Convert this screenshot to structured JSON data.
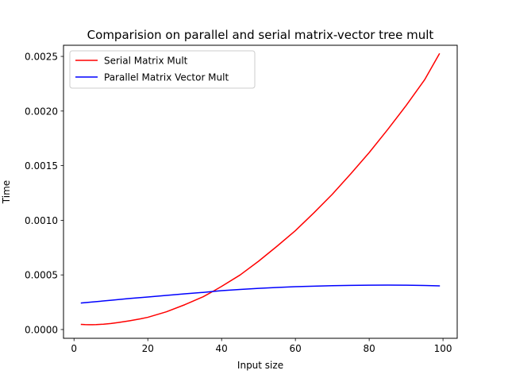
{
  "chart_data": {
    "type": "line",
    "title": "Comparision on parallel and serial matrix-vector tree mult",
    "xlabel": "Input size",
    "ylabel": "Time",
    "xlim": [
      -2.85,
      103.85
    ],
    "ylim": [
      -8.02e-05,
      0.002602
    ],
    "xticks": [
      0,
      20,
      40,
      60,
      80,
      100
    ],
    "xtick_labels": [
      "0",
      "20",
      "40",
      "60",
      "80",
      "100"
    ],
    "yticks": [
      0.0,
      0.0005,
      0.001,
      0.0015,
      0.002,
      0.0025
    ],
    "ytick_labels": [
      "0.0000",
      "0.0005",
      "0.0010",
      "0.0015",
      "0.0020",
      "0.0025"
    ],
    "grid": false,
    "legend_position": "upper-left",
    "series": [
      {
        "name": "Serial Matrix Mult",
        "color": "#ff0000",
        "x": [
          2,
          3,
          4,
          5,
          6,
          8,
          10,
          12,
          15,
          18,
          20,
          25,
          30,
          35,
          38,
          40,
          45,
          50,
          55,
          60,
          65,
          70,
          75,
          80,
          85,
          90,
          95,
          99
        ],
        "y": [
          4.7e-05,
          4.5e-05,
          4.4e-05,
          4.4e-05,
          4.5e-05,
          4.9e-05,
          5.5e-05,
          6.4e-05,
          8e-05,
          9.8e-05,
          0.000112,
          0.000162,
          0.000227,
          0.0003,
          0.000356,
          0.000395,
          0.000499,
          0.000625,
          0.000762,
          0.000905,
          0.001068,
          0.001238,
          0.001425,
          0.00162,
          0.00183,
          0.00205,
          0.002285,
          0.002523
        ]
      },
      {
        "name": "Parallel Matrix Vector Mult",
        "color": "#0000ff",
        "x": [
          2,
          5,
          10,
          15,
          20,
          25,
          30,
          35,
          38,
          40,
          45,
          50,
          55,
          60,
          65,
          70,
          75,
          80,
          85,
          90,
          95,
          99
        ],
        "y": [
          0.000243,
          0.000252,
          0.000268,
          0.000284,
          0.000298,
          0.000312,
          0.000327,
          0.00034,
          0.00035,
          0.000356,
          0.000367,
          0.000377,
          0.000385,
          0.000392,
          0.000397,
          0.000401,
          0.000404,
          0.000406,
          0.000407,
          0.000406,
          0.000403,
          0.0004
        ]
      }
    ]
  }
}
